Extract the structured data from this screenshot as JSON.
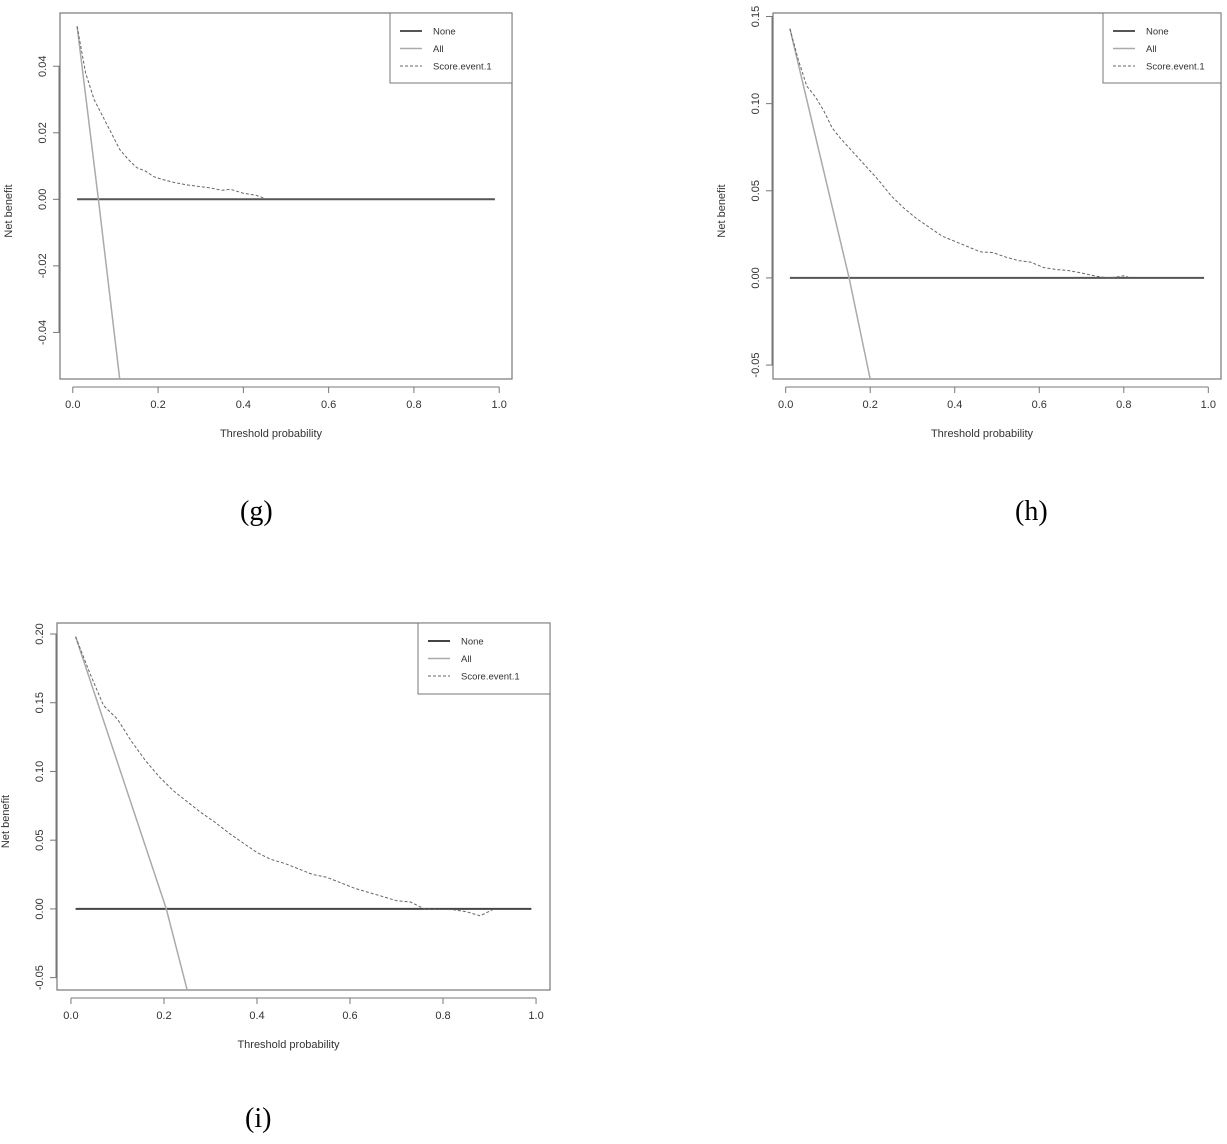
{
  "figure": {
    "captions": [
      "(g)",
      "(h)",
      "(i)"
    ]
  },
  "chart_data": [
    {
      "id": "g",
      "type": "line",
      "title": "",
      "caption": "(g)",
      "xlabel": "Threshold probability",
      "ylabel": "Net benefit",
      "xlim": [
        -0.03,
        1.03
      ],
      "ylim": [
        -0.054,
        0.056
      ],
      "xticks": [
        0.0,
        0.2,
        0.4,
        0.6,
        0.8,
        1.0
      ],
      "xtick_labels": [
        "0.0",
        "0.2",
        "0.4",
        "0.6",
        "0.8",
        "1.0"
      ],
      "yticks": [
        -0.04,
        -0.02,
        0.0,
        0.02,
        0.04
      ],
      "ytick_labels": [
        "-0.04",
        "-0.02",
        "0.00",
        "0.02",
        "0.04"
      ],
      "grid": false,
      "legend": {
        "position": "top-right",
        "entries": [
          "None",
          "All",
          "Score.event.1"
        ]
      },
      "series": [
        {
          "name": "None",
          "style": "solid",
          "color": "#555555",
          "width": 2,
          "x": [
            0.01,
            0.99
          ],
          "y": [
            0.0,
            0.0
          ]
        },
        {
          "name": "All",
          "style": "solid",
          "color": "#aaaaaa",
          "width": 1.5,
          "x": [
            0.01,
            0.06,
            0.11
          ],
          "y": [
            0.052,
            0.0,
            -0.054
          ]
        },
        {
          "name": "Score.event.1",
          "style": "dashed",
          "color": "#666666",
          "width": 1,
          "x": [
            0.01,
            0.03,
            0.05,
            0.07,
            0.09,
            0.11,
            0.13,
            0.15,
            0.17,
            0.19,
            0.21,
            0.24,
            0.27,
            0.3,
            0.32,
            0.35,
            0.37,
            0.4,
            0.43,
            0.45
          ],
          "y": [
            0.052,
            0.038,
            0.03,
            0.025,
            0.02,
            0.015,
            0.012,
            0.0095,
            0.0085,
            0.0068,
            0.006,
            0.005,
            0.0043,
            0.0038,
            0.0035,
            0.0027,
            0.003,
            0.0018,
            0.0012,
            0.0003
          ]
        }
      ]
    },
    {
      "id": "h",
      "type": "line",
      "title": "",
      "caption": "(h)",
      "xlabel": "Threshold probability",
      "ylabel": "Net benefit",
      "xlim": [
        -0.03,
        1.03
      ],
      "ylim": [
        -0.058,
        0.152
      ],
      "xticks": [
        0.0,
        0.2,
        0.4,
        0.6,
        0.8,
        1.0
      ],
      "xtick_labels": [
        "0.0",
        "0.2",
        "0.4",
        "0.6",
        "0.8",
        "1.0"
      ],
      "yticks": [
        -0.05,
        0.0,
        0.05,
        0.1,
        0.15
      ],
      "ytick_labels": [
        "-0.05",
        "0.00",
        "0.05",
        "0.10",
        "0.15"
      ],
      "grid": false,
      "legend": {
        "position": "top-right",
        "entries": [
          "None",
          "All",
          "Score.event.1"
        ]
      },
      "series": [
        {
          "name": "None",
          "style": "solid",
          "color": "#555555",
          "width": 2,
          "x": [
            0.01,
            0.99
          ],
          "y": [
            0.0,
            0.0
          ]
        },
        {
          "name": "All",
          "style": "solid",
          "color": "#aaaaaa",
          "width": 1.5,
          "x": [
            0.01,
            0.15,
            0.2
          ],
          "y": [
            0.143,
            0.0,
            -0.058
          ]
        },
        {
          "name": "Score.event.1",
          "style": "dashed",
          "color": "#666666",
          "width": 1,
          "x": [
            0.01,
            0.03,
            0.05,
            0.07,
            0.09,
            0.11,
            0.13,
            0.16,
            0.19,
            0.22,
            0.25,
            0.28,
            0.31,
            0.34,
            0.37,
            0.4,
            0.43,
            0.46,
            0.49,
            0.52,
            0.55,
            0.58,
            0.61,
            0.64,
            0.67,
            0.7,
            0.73,
            0.76,
            0.78,
            0.8,
            0.81
          ],
          "y": [
            0.143,
            0.125,
            0.11,
            0.104,
            0.096,
            0.086,
            0.08,
            0.072,
            0.064,
            0.056,
            0.047,
            0.04,
            0.034,
            0.029,
            0.024,
            0.021,
            0.018,
            0.015,
            0.0145,
            0.012,
            0.01,
            0.009,
            0.006,
            0.0048,
            0.0042,
            0.0028,
            0.0012,
            0.0,
            0.0004,
            0.0012,
            0.0005
          ]
        }
      ]
    },
    {
      "id": "i",
      "type": "line",
      "title": "",
      "caption": "(i)",
      "xlabel": "Threshold probability",
      "ylabel": "Net benefit",
      "xlim": [
        -0.03,
        1.03
      ],
      "ylim": [
        -0.059,
        0.208
      ],
      "xticks": [
        0.0,
        0.2,
        0.4,
        0.6,
        0.8,
        1.0
      ],
      "xtick_labels": [
        "0.0",
        "0.2",
        "0.4",
        "0.6",
        "0.8",
        "1.0"
      ],
      "yticks": [
        -0.05,
        0.0,
        0.05,
        0.1,
        0.15,
        0.2
      ],
      "ytick_labels": [
        "-0.05",
        "0.00",
        "0.05",
        "0.10",
        "0.15",
        "0.20"
      ],
      "grid": false,
      "legend": {
        "position": "top-right",
        "entries": [
          "None",
          "All",
          "Score.event.1"
        ]
      },
      "series": [
        {
          "name": "None",
          "style": "solid",
          "color": "#444444",
          "width": 2,
          "x": [
            0.01,
            0.99
          ],
          "y": [
            0.0,
            0.0
          ]
        },
        {
          "name": "All",
          "style": "solid",
          "color": "#aaaaaa",
          "width": 1.5,
          "x": [
            0.01,
            0.205,
            0.25
          ],
          "y": [
            0.198,
            0.0,
            -0.059
          ]
        },
        {
          "name": "Score.event.1",
          "style": "dashed",
          "color": "#666666",
          "width": 1,
          "x": [
            0.01,
            0.04,
            0.07,
            0.1,
            0.13,
            0.16,
            0.19,
            0.22,
            0.25,
            0.28,
            0.31,
            0.34,
            0.37,
            0.4,
            0.43,
            0.46,
            0.49,
            0.52,
            0.55,
            0.58,
            0.61,
            0.64,
            0.67,
            0.7,
            0.73,
            0.76,
            0.79,
            0.82,
            0.85,
            0.88,
            0.91
          ],
          "y": [
            0.198,
            0.172,
            0.148,
            0.138,
            0.122,
            0.108,
            0.096,
            0.086,
            0.078,
            0.07,
            0.063,
            0.055,
            0.048,
            0.041,
            0.036,
            0.033,
            0.029,
            0.025,
            0.023,
            0.019,
            0.015,
            0.012,
            0.009,
            0.006,
            0.005,
            0.0,
            -0.0003,
            -0.0005,
            -0.002,
            -0.005,
            0.0
          ]
        }
      ]
    }
  ]
}
